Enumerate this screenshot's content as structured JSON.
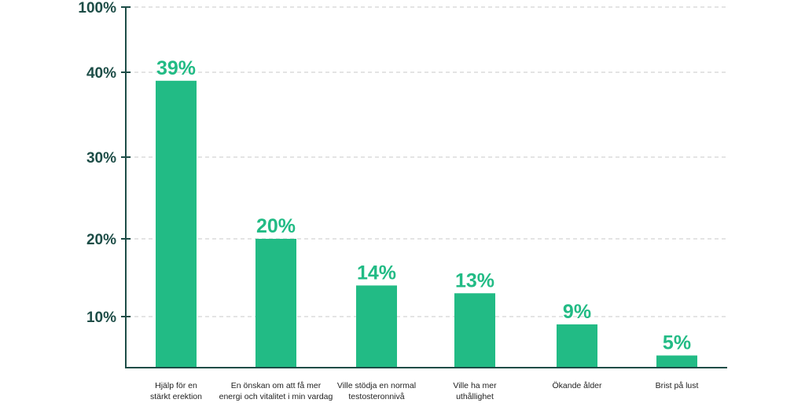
{
  "chart_data": {
    "type": "bar",
    "title": "",
    "xlabel": "",
    "ylabel": "",
    "categories": [
      [
        "Hjälp för en",
        "stärkt erektion"
      ],
      [
        "En önskan om att få mer",
        "energi och vitalitet i min vardag"
      ],
      [
        "Ville stödja en normal",
        "testosteronnivå"
      ],
      [
        "Ville ha mer",
        "uthållighet"
      ],
      [
        "Ökande ålder"
      ],
      [
        "Brist på lust"
      ]
    ],
    "values": [
      39,
      20,
      14,
      13,
      9,
      5
    ],
    "value_labels": [
      "39%",
      "20%",
      "14%",
      "13%",
      "9%",
      "5%"
    ],
    "y_ticks": [
      {
        "value": 10,
        "label": "10%"
      },
      {
        "value": 20,
        "label": "20%"
      },
      {
        "value": 30,
        "label": "30%"
      },
      {
        "value": 40,
        "label": "40%"
      },
      {
        "value": 100,
        "label": "100%"
      }
    ],
    "ylim": [
      0,
      100
    ],
    "y_scale": "piecewise: 0–40 linear, broken axis 40–100",
    "grid": true,
    "legend": "none",
    "colors": {
      "bar": "#22bb85",
      "value_label": "#22bb85",
      "axis": "#1d4d47",
      "tick_label": "#1d4d47",
      "grid": "#c8c8c8"
    }
  }
}
